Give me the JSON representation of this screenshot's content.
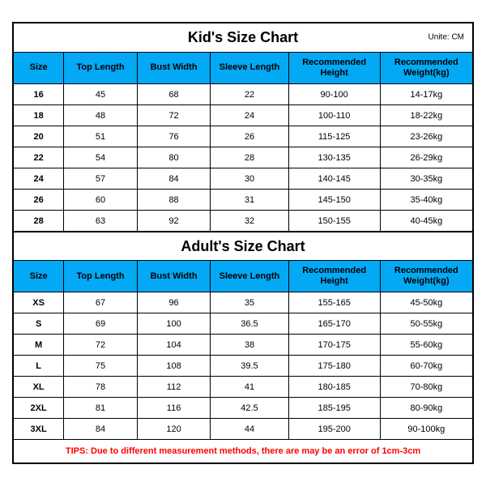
{
  "unite_label": "Unite: CM",
  "header_color": "#03a9f4",
  "tips_color": "#ff0000",
  "kids": {
    "title": "Kid's Size Chart",
    "columns": [
      "Size",
      "Top Length",
      "Bust Width",
      "Sleeve Length",
      "Recommended Height",
      "Recommended Weight(kg)"
    ],
    "rows": [
      [
        "16",
        "45",
        "68",
        "22",
        "90-100",
        "14-17kg"
      ],
      [
        "18",
        "48",
        "72",
        "24",
        "100-110",
        "18-22kg"
      ],
      [
        "20",
        "51",
        "76",
        "26",
        "115-125",
        "23-26kg"
      ],
      [
        "22",
        "54",
        "80",
        "28",
        "130-135",
        "26-29kg"
      ],
      [
        "24",
        "57",
        "84",
        "30",
        "140-145",
        "30-35kg"
      ],
      [
        "26",
        "60",
        "88",
        "31",
        "145-150",
        "35-40kg"
      ],
      [
        "28",
        "63",
        "92",
        "32",
        "150-155",
        "40-45kg"
      ]
    ]
  },
  "adults": {
    "title": "Adult's Size Chart",
    "columns": [
      "Size",
      "Top Length",
      "Bust Width",
      "Sleeve Length",
      "Recommended Height",
      "Recommended Weight(kg)"
    ],
    "rows": [
      [
        "XS",
        "67",
        "96",
        "35",
        "155-165",
        "45-50kg"
      ],
      [
        "S",
        "69",
        "100",
        "36.5",
        "165-170",
        "50-55kg"
      ],
      [
        "M",
        "72",
        "104",
        "38",
        "170-175",
        "55-60kg"
      ],
      [
        "L",
        "75",
        "108",
        "39.5",
        "175-180",
        "60-70kg"
      ],
      [
        "XL",
        "78",
        "112",
        "41",
        "180-185",
        "70-80kg"
      ],
      [
        "2XL",
        "81",
        "116",
        "42.5",
        "185-195",
        "80-90kg"
      ],
      [
        "3XL",
        "84",
        "120",
        "44",
        "195-200",
        "90-100kg"
      ]
    ]
  },
  "tips": "TIPS: Due to different measurement methods, there are may be an error of 1cm-3cm"
}
